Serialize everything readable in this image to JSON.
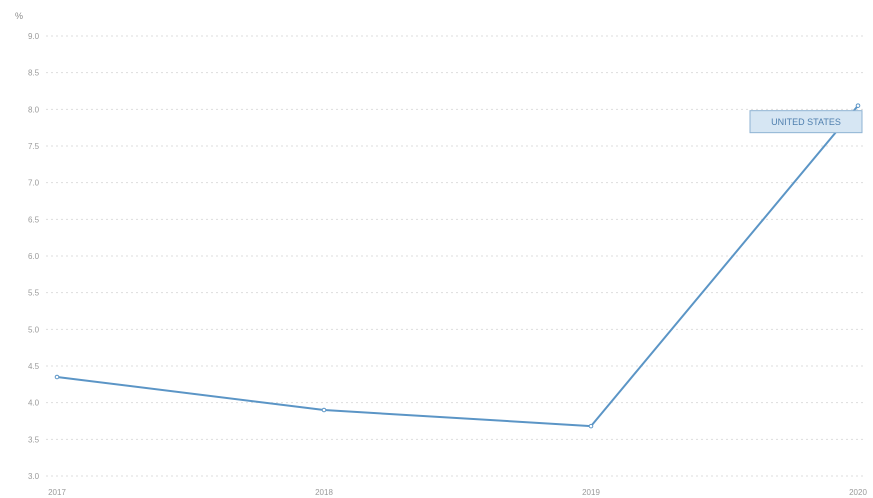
{
  "chart_data": {
    "type": "line",
    "unit": "%",
    "x": [
      "2017",
      "2018",
      "2019",
      "2020"
    ],
    "ylim": [
      3.0,
      9.0
    ],
    "yticks": [
      "3.0",
      "3.5",
      "4.0",
      "4.5",
      "5.0",
      "5.5",
      "6.0",
      "6.5",
      "7.0",
      "7.5",
      "8.0",
      "8.5",
      "9.0"
    ],
    "grid": true,
    "series": [
      {
        "name": "UNITED STATES",
        "values": [
          4.35,
          3.9,
          3.68,
          8.05
        ],
        "color": "#5b95c6"
      }
    ],
    "series_label_placement": "right-end"
  }
}
